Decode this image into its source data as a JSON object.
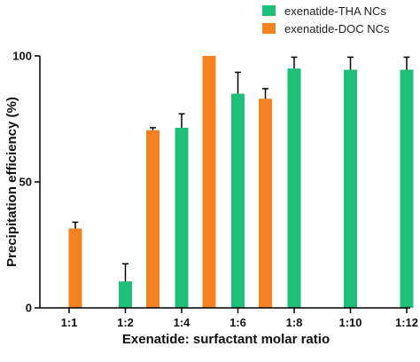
{
  "chart_data": {
    "type": "bar",
    "xlabel": "Exenatide: surfactant molar ratio",
    "ylabel": "Precipitation efficiency (%)",
    "categories": [
      "1:1",
      "1:2",
      "1:4",
      "1:6",
      "1:8",
      "1:10",
      "1:12"
    ],
    "ylim": [
      0,
      100
    ],
    "yticks": [
      0,
      50,
      100
    ],
    "grid": false,
    "legend_position": "top-right",
    "series": [
      {
        "name": "exenatide-THA NCs",
        "color": "#1fbf7a",
        "values": [
          null,
          10.5,
          71.5,
          85,
          95,
          94.5,
          94.5
        ],
        "errors": [
          null,
          7,
          5.5,
          8.5,
          4.5,
          5,
          5
        ]
      },
      {
        "name": "exenatide-DOC NCs",
        "color": "#f58220",
        "values": [
          31.5,
          70.5,
          100,
          83,
          null,
          null,
          null
        ],
        "errors": [
          2.5,
          1,
          0,
          4,
          null,
          null,
          null
        ]
      }
    ]
  }
}
